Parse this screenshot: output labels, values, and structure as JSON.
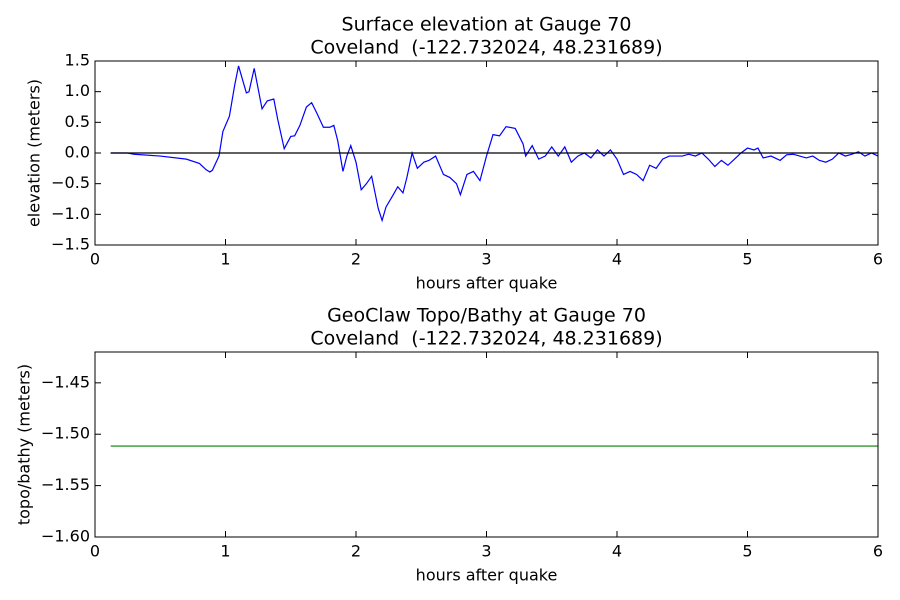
{
  "chart_data": [
    {
      "type": "line",
      "title": "Surface elevation at Gauge 70",
      "subtitle": "Coveland  (-122.732024, 48.231689)",
      "x_label": "hours after quake",
      "y_label": "elevation (meters)",
      "xlim": [
        0,
        6
      ],
      "xticks": [
        0,
        1,
        2,
        3,
        4,
        5,
        6
      ],
      "ylim": [
        -1.5,
        1.5
      ],
      "yticks": [
        1.5,
        {
          "value": 1,
          "label": "1.0"
        },
        0.5,
        {
          "value": 0,
          "label": "0.0"
        },
        {
          "value": -0.5,
          "label": "−0.5"
        },
        {
          "value": -1,
          "label": "−1.0"
        },
        {
          "value": -1.5,
          "label": "−1.5"
        }
      ],
      "series": [
        {
          "color": "#0000ff",
          "x": [
            0.12,
            0.25,
            0.3,
            0.5,
            0.7,
            0.8,
            0.85,
            0.88,
            0.9,
            0.95,
            0.98,
            1.0,
            1.03,
            1.07,
            1.1,
            1.13,
            1.16,
            1.18,
            1.22,
            1.25,
            1.28,
            1.32,
            1.37,
            1.4,
            1.45,
            1.5,
            1.53,
            1.57,
            1.62,
            1.66,
            1.7,
            1.75,
            1.8,
            1.83,
            1.86,
            1.9,
            1.93,
            1.96,
            2.0,
            2.04,
            2.08,
            2.12,
            2.17,
            2.2,
            2.23,
            2.28,
            2.32,
            2.36,
            2.39,
            2.43,
            2.47,
            2.52,
            2.56,
            2.61,
            2.67,
            2.72,
            2.77,
            2.8,
            2.85,
            2.9,
            2.95,
            3.0,
            3.05,
            3.1,
            3.15,
            3.22,
            3.28,
            3.3,
            3.35,
            3.4,
            3.45,
            3.5,
            3.55,
            3.6,
            3.65,
            3.7,
            3.75,
            3.8,
            3.85,
            3.9,
            3.95,
            4.0,
            4.05,
            4.1,
            4.15,
            4.2,
            4.25,
            4.3,
            4.35,
            4.4,
            4.5,
            4.55,
            4.6,
            4.65,
            4.7,
            4.75,
            4.8,
            4.85,
            4.9,
            4.95,
            5.0,
            5.05,
            5.08,
            5.12,
            5.18,
            5.25,
            5.3,
            5.35,
            5.45,
            5.5,
            5.55,
            5.6,
            5.65,
            5.7,
            5.75,
            5.8,
            5.85,
            5.9,
            5.95,
            6.0
          ],
          "values": [
            0,
            0,
            -0.02,
            -0.05,
            -0.1,
            -0.17,
            -0.27,
            -0.31,
            -0.28,
            -0.05,
            0.35,
            0.45,
            0.6,
            1.1,
            1.42,
            1.2,
            0.98,
            1.0,
            1.38,
            1.05,
            0.72,
            0.85,
            0.88,
            0.55,
            0.07,
            0.27,
            0.28,
            0.45,
            0.75,
            0.82,
            0.65,
            0.42,
            0.42,
            0.45,
            0.2,
            -0.3,
            -0.05,
            0.12,
            -0.15,
            -0.6,
            -0.5,
            -0.38,
            -0.9,
            -1.1,
            -0.88,
            -0.7,
            -0.55,
            -0.65,
            -0.4,
            0.0,
            -0.25,
            -0.15,
            -0.12,
            -0.05,
            -0.35,
            -0.4,
            -0.5,
            -0.68,
            -0.35,
            -0.3,
            -0.45,
            -0.05,
            0.3,
            0.28,
            0.43,
            0.4,
            0.15,
            -0.05,
            0.12,
            -0.1,
            -0.05,
            0.1,
            -0.05,
            0.1,
            -0.15,
            -0.05,
            0.0,
            -0.08,
            0.05,
            -0.05,
            0.05,
            -0.1,
            -0.35,
            -0.3,
            -0.35,
            -0.45,
            -0.2,
            -0.25,
            -0.1,
            -0.05,
            -0.05,
            -0.02,
            -0.05,
            0.0,
            -0.1,
            -0.22,
            -0.12,
            -0.2,
            -0.1,
            0.0,
            0.08,
            0.05,
            0.08,
            -0.08,
            -0.05,
            -0.12,
            -0.03,
            -0.02,
            -0.08,
            -0.05,
            -0.12,
            -0.15,
            -0.1,
            0.0,
            -0.05,
            -0.02,
            0.02,
            -0.05,
            0.0,
            -0.05
          ]
        },
        {
          "color": "#000000",
          "x": [
            0.12,
            6
          ],
          "values": [
            0,
            0
          ]
        }
      ]
    },
    {
      "type": "line",
      "title": "GeoClaw Topo/Bathy at Gauge 70",
      "subtitle": "Coveland  (-122.732024, 48.231689)",
      "x_label": "hours after quake",
      "y_label": "topo/bathy (meters)",
      "xlim": [
        0,
        6
      ],
      "xticks": [
        0,
        1,
        2,
        3,
        4,
        5,
        6
      ],
      "ylim": [
        -1.6,
        -1.42
      ],
      "yticks": [
        {
          "value": -1.45,
          "label": "−1.45"
        },
        {
          "value": -1.5,
          "label": "−1.50"
        },
        {
          "value": -1.55,
          "label": "−1.55"
        },
        {
          "value": -1.6,
          "label": "−1.60"
        }
      ],
      "series": [
        {
          "color": "#008000",
          "x": [
            0.12,
            6
          ],
          "values": [
            -1.5115,
            -1.5115
          ]
        }
      ]
    }
  ]
}
